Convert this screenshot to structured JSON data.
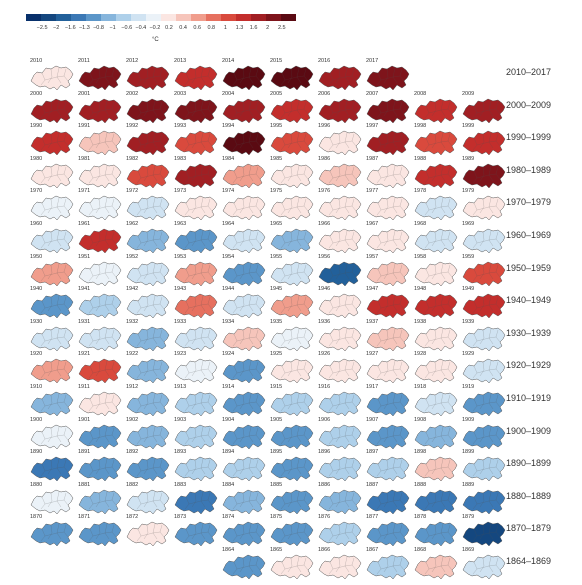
{
  "scale": {
    "ticks": [
      "−2.5",
      "−2",
      "−1.6",
      "−1.3",
      "−0.8",
      "−1",
      "−0.6",
      "−0.4",
      "−0.2",
      "0.2",
      "0.4",
      "0.6",
      "0.8",
      "1",
      "1.3",
      "1.6",
      "2",
      "2.5"
    ],
    "unit": "°C",
    "colors": [
      "#08306b",
      "#14477f",
      "#22609a",
      "#3b78b5",
      "#5b96c9",
      "#86b5dc",
      "#aed0ea",
      "#d0e3f2",
      "#ebf2f8",
      "#fbe6e2",
      "#f6c5bb",
      "#f09d8c",
      "#e6705f",
      "#d94a3d",
      "#c32e2c",
      "#a11f23",
      "#7e141b",
      "#5a0a12"
    ]
  },
  "rows": [
    {
      "label": "2010–2017",
      "start": 2010,
      "values": [
        0.1,
        1.9,
        1.3,
        1.0,
        2.2,
        2.0,
        1.5,
        1.7
      ]
    },
    {
      "label": "2000–2009",
      "start": 2000,
      "values": [
        1.5,
        1.3,
        1.6,
        1.9,
        1.3,
        1.1,
        1.5,
        1.7,
        1.2,
        1.4
      ]
    },
    {
      "label": "1990–1999",
      "start": 1990,
      "values": [
        1.0,
        0.2,
        1.3,
        0.9,
        2.0,
        0.8,
        0.1,
        1.3,
        0.9,
        1.0
      ]
    },
    {
      "label": "1980–1989",
      "start": 1980,
      "values": [
        -0.1,
        -0.1,
        0.8,
        1.3,
        0.4,
        0.1,
        0.2,
        0.1,
        1.0,
        1.6
      ]
    },
    {
      "label": "1970–1979",
      "start": 1970,
      "values": [
        -0.4,
        -0.4,
        -0.6,
        -0.1,
        -0.2,
        -0.1,
        -0.1,
        0.1,
        -0.6,
        -0.1
      ]
    },
    {
      "label": "1960–1969",
      "start": 1960,
      "values": [
        -0.6,
        1.0,
        -1.0,
        -1.1,
        -0.6,
        -1.0,
        -0.1,
        -0.1,
        -0.6,
        -0.6
      ]
    },
    {
      "label": "1950–1959",
      "start": 1950,
      "values": [
        0.5,
        -0.3,
        -0.6,
        0.4,
        -1.1,
        -0.6,
        -1.9,
        0.3,
        0.1,
        0.8
      ]
    },
    {
      "label": "1940–1949",
      "start": 1940,
      "values": [
        -1.1,
        -0.8,
        -0.6,
        0.6,
        -0.6,
        0.5,
        -0.1,
        1.2,
        1.0,
        1.0
      ]
    },
    {
      "label": "1930–1939",
      "start": 1930,
      "values": [
        -0.6,
        -0.6,
        -1.0,
        -0.6,
        0.3,
        -0.4,
        -0.1,
        0.2,
        0.1,
        -0.6
      ]
    },
    {
      "label": "1920–1929",
      "start": 1920,
      "values": [
        0.4,
        0.9,
        -1.0,
        -0.3,
        -1.1,
        -0.2,
        -0.1,
        -0.1,
        -0.1,
        -0.6
      ]
    },
    {
      "label": "1910–1919",
      "start": 1910,
      "values": [
        -1.0,
        0.1,
        -1.0,
        -0.8,
        -1.1,
        -0.8,
        -0.8,
        -1.3,
        -0.6,
        -1.1
      ]
    },
    {
      "label": "1900–1909",
      "start": 1900,
      "values": [
        -0.4,
        -1.3,
        -0.9,
        -0.8,
        -1.1,
        -1.1,
        -0.8,
        -1.3,
        -1.0,
        -1.3
      ]
    },
    {
      "label": "1890–1899",
      "start": 1890,
      "values": [
        -1.6,
        -1.2,
        -1.1,
        -0.8,
        -0.8,
        -1.1,
        -0.8,
        -0.8,
        0.2,
        -0.8
      ]
    },
    {
      "label": "1880–1889",
      "start": 1880,
      "values": [
        -0.4,
        -1.0,
        -0.6,
        -1.6,
        -1.0,
        -1.3,
        -0.9,
        -1.6,
        -1.6,
        -1.6
      ]
    },
    {
      "label": "1870–1879",
      "start": 1870,
      "values": [
        -1.1,
        -1.3,
        0.1,
        -1.3,
        -1.3,
        -1.3,
        -0.8,
        -1.1,
        -1.3,
        -2.3
      ]
    },
    {
      "label": "1864–1869",
      "start": 1864,
      "values": [
        -1.3,
        -0.2,
        -0.1,
        -0.8,
        0.2,
        -0.6
      ]
    }
  ]
}
